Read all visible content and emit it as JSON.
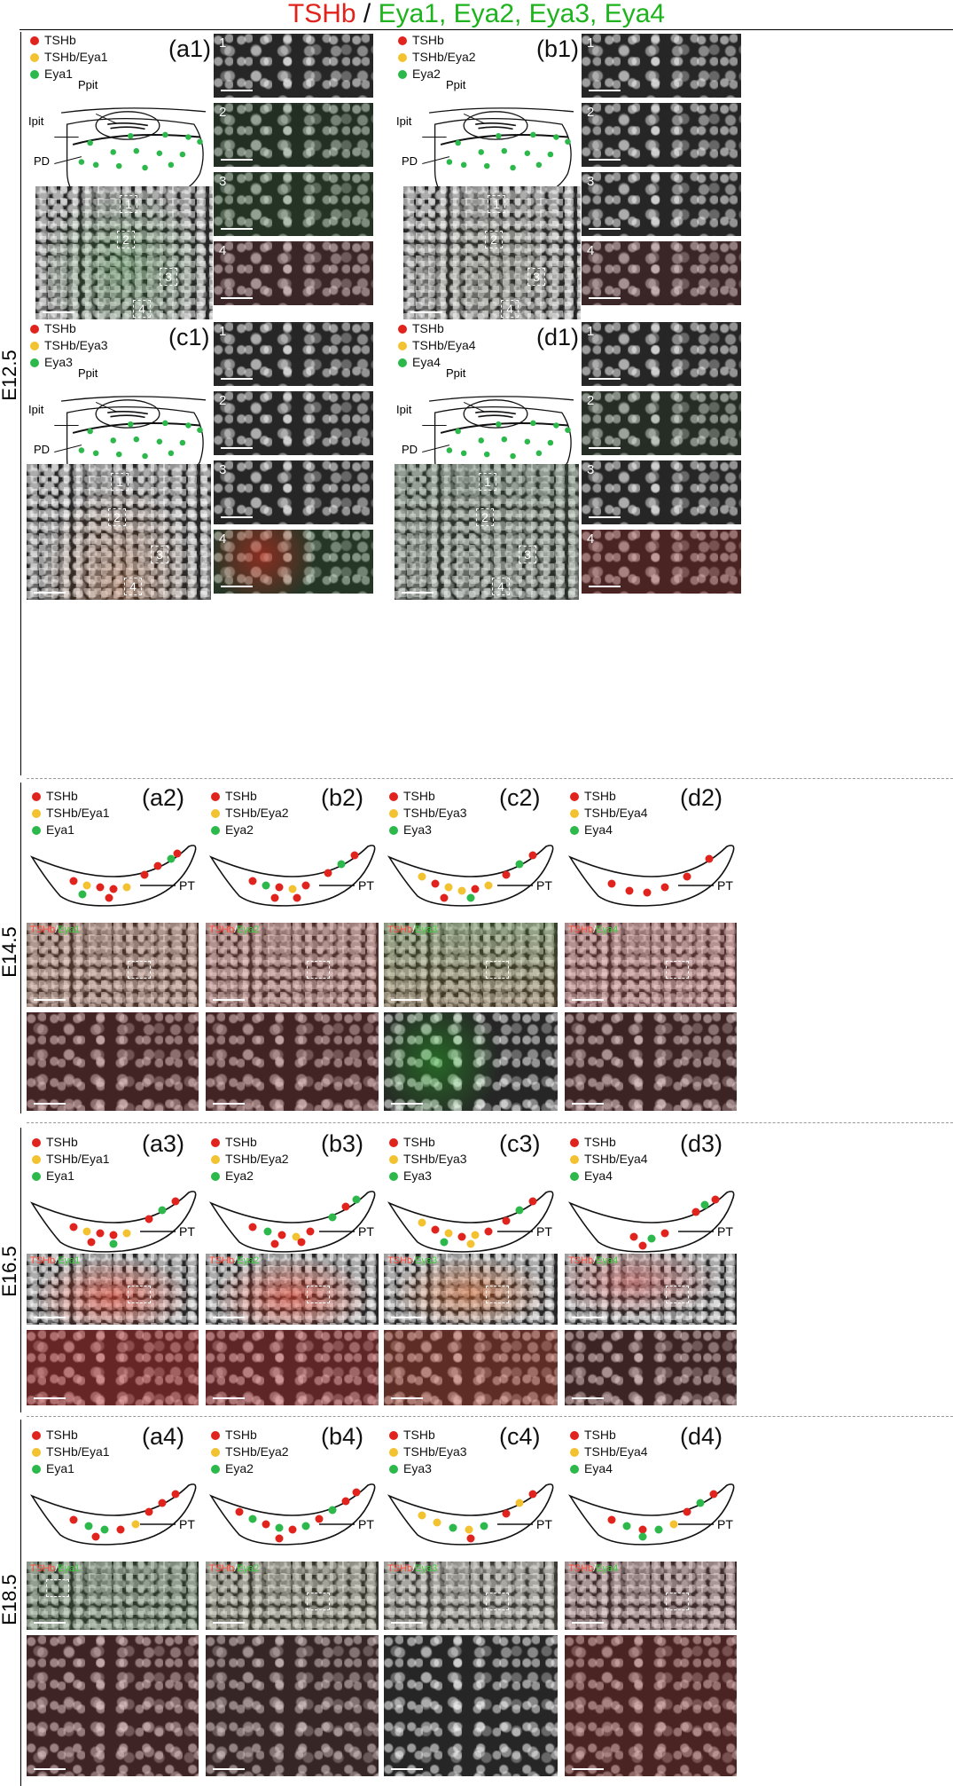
{
  "title": {
    "tshb": "TSHb",
    "sep": " / ",
    "eya": "Eya1, Eya2, Eya3, Eya4"
  },
  "stages": [
    {
      "label": "E12.5"
    },
    {
      "label": "E14.5"
    },
    {
      "label": "E16.5"
    },
    {
      "label": "E18.5"
    }
  ],
  "schematic_labels": {
    "ppit": "Ppit",
    "ipit": "Ipit",
    "pd": "PD",
    "pt": "PT"
  },
  "e12_panels": [
    {
      "id": "(a1)",
      "legend": [
        "TSHb",
        "TSHb/Eya1",
        "Eya1"
      ]
    },
    {
      "id": "(b1)",
      "legend": [
        "TSHb",
        "TSHb/Eya2",
        "Eya2"
      ]
    },
    {
      "id": "(c1)",
      "legend": [
        "TSHb",
        "TSHb/Eya3",
        "Eya3"
      ]
    },
    {
      "id": "(d1)",
      "legend": [
        "TSHb",
        "TSHb/Eya4",
        "Eya4"
      ]
    }
  ],
  "zoom_numbers": [
    "1",
    "2",
    "3",
    "4"
  ],
  "later_panels": [
    [
      {
        "id": "(a2)",
        "legend": [
          "TSHb",
          "TSHb/Eya1",
          "Eya1"
        ],
        "m_red": "TSHb",
        "m_green": "Eya1"
      },
      {
        "id": "(b2)",
        "legend": [
          "TSHb",
          "TSHb/Eya2",
          "Eya2"
        ],
        "m_red": "TSHb",
        "m_green": "Eya2"
      },
      {
        "id": "(c2)",
        "legend": [
          "TSHb",
          "TSHb/Eya3",
          "Eya3"
        ],
        "m_red": "TSHb",
        "m_green": "Eya3"
      },
      {
        "id": "(d2)",
        "legend": [
          "TSHb",
          "TSHb/Eya4",
          "Eya4"
        ],
        "m_red": "TSHb",
        "m_green": "Eya4"
      }
    ],
    [
      {
        "id": "(a3)",
        "legend": [
          "TSHb",
          "TSHb/Eya1",
          "Eya1"
        ],
        "m_red": "TSHb",
        "m_green": "Eya1"
      },
      {
        "id": "(b3)",
        "legend": [
          "TSHb",
          "TSHb/Eya2",
          "Eya2"
        ],
        "m_red": "TSHb",
        "m_green": "Eya2"
      },
      {
        "id": "(c3)",
        "legend": [
          "TSHb",
          "TSHb/Eya3",
          "Eya3"
        ],
        "m_red": "TSHb",
        "m_green": "Eya3"
      },
      {
        "id": "(d3)",
        "legend": [
          "TSHb",
          "TSHb/Eya4",
          "Eya4"
        ],
        "m_red": "TSHb",
        "m_green": "Eya4"
      }
    ],
    [
      {
        "id": "(a4)",
        "legend": [
          "TSHb",
          "TSHb/Eya1",
          "Eya1"
        ],
        "m_red": "TSHb",
        "m_green": "Eya1"
      },
      {
        "id": "(b4)",
        "legend": [
          "TSHb",
          "TSHb/Eya2",
          "Eya2"
        ],
        "m_red": "TSHb",
        "m_green": "Eya2"
      },
      {
        "id": "(c4)",
        "legend": [
          "TSHb",
          "TSHb/Eya3",
          "Eya3"
        ],
        "m_red": "TSHb",
        "m_green": "Eya3"
      },
      {
        "id": "(d4)",
        "legend": [
          "TSHb",
          "TSHb/Eya4",
          "Eya4"
        ],
        "m_red": "TSHb",
        "m_green": "Eya4"
      }
    ]
  ],
  "colors": {
    "tshb": "#e0231d",
    "coexpr": "#f2c230",
    "eya": "#2cb84b"
  }
}
